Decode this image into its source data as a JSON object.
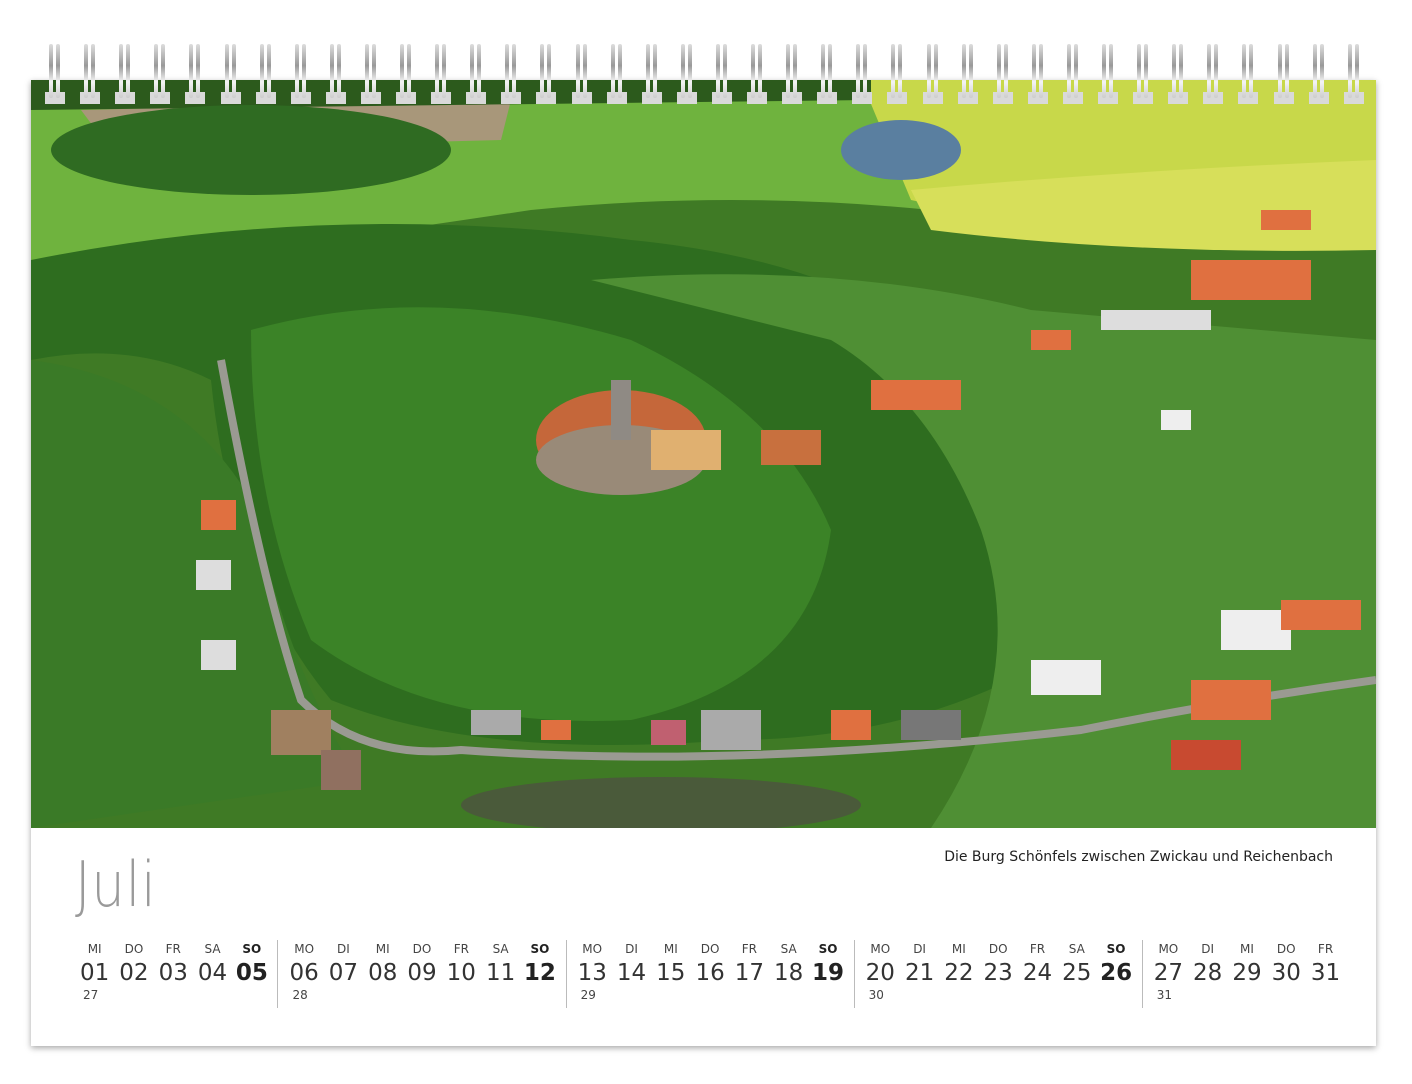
{
  "month": "Juli",
  "caption": "Die Burg Schönfels zwischen Zwickau und Reichenbach",
  "weeks": [
    {
      "number": "27",
      "days": [
        {
          "n": "MI",
          "d": "01"
        },
        {
          "n": "DO",
          "d": "02"
        },
        {
          "n": "FR",
          "d": "03"
        },
        {
          "n": "SA",
          "d": "04"
        },
        {
          "n": "SO",
          "d": "05"
        }
      ]
    },
    {
      "number": "28",
      "days": [
        {
          "n": "MO",
          "d": "06"
        },
        {
          "n": "DI",
          "d": "07"
        },
        {
          "n": "MI",
          "d": "08"
        },
        {
          "n": "DO",
          "d": "09"
        },
        {
          "n": "FR",
          "d": "10"
        },
        {
          "n": "SA",
          "d": "11"
        },
        {
          "n": "SO",
          "d": "12"
        }
      ]
    },
    {
      "number": "29",
      "days": [
        {
          "n": "MO",
          "d": "13"
        },
        {
          "n": "DI",
          "d": "14"
        },
        {
          "n": "MI",
          "d": "15"
        },
        {
          "n": "DO",
          "d": "16"
        },
        {
          "n": "FR",
          "d": "17"
        },
        {
          "n": "SA",
          "d": "18"
        },
        {
          "n": "SO",
          "d": "19"
        }
      ]
    },
    {
      "number": "30",
      "days": [
        {
          "n": "MO",
          "d": "20"
        },
        {
          "n": "DI",
          "d": "21"
        },
        {
          "n": "MI",
          "d": "22"
        },
        {
          "n": "DO",
          "d": "23"
        },
        {
          "n": "FR",
          "d": "24"
        },
        {
          "n": "SA",
          "d": "25"
        },
        {
          "n": "SO",
          "d": "26"
        }
      ]
    },
    {
      "number": "31",
      "days": [
        {
          "n": "MO",
          "d": "27"
        },
        {
          "n": "DI",
          "d": "28"
        },
        {
          "n": "MI",
          "d": "29"
        },
        {
          "n": "DO",
          "d": "30"
        },
        {
          "n": "FR",
          "d": "31"
        }
      ]
    }
  ]
}
